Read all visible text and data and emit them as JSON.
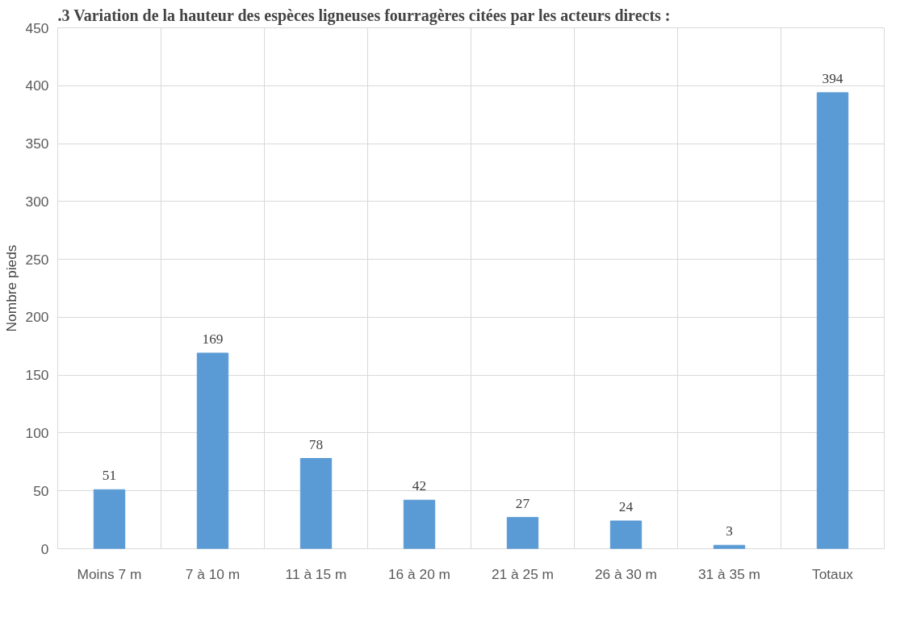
{
  "chart_data": {
    "type": "bar",
    "title": ".3   Variation de la hauteur des espèces ligneuses fourragères citées par les acteurs directs :",
    "ylabel": "Nombre pieds",
    "categories": [
      "Moins 7 m",
      "7 à 10 m",
      "11 à 15 m",
      "16 à 20 m",
      "21 à 25 m",
      "26 à 30 m",
      "31 à 35 m",
      "Totaux"
    ],
    "values": [
      51,
      169,
      78,
      42,
      27,
      24,
      3,
      394
    ],
    "color": "#5b9bd5",
    "ylim": [
      0,
      450
    ],
    "yticks": [
      0,
      50,
      100,
      150,
      200,
      250,
      300,
      350,
      400,
      450
    ],
    "grid": true,
    "data_labels": true
  }
}
